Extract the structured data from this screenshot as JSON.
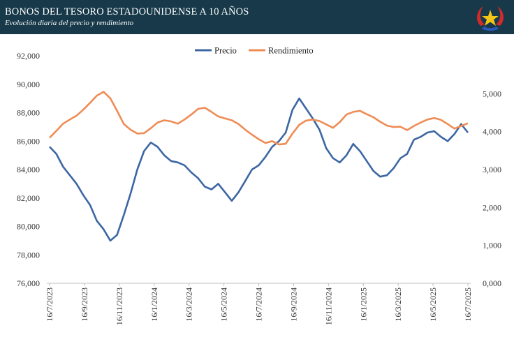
{
  "header": {
    "title": "BONOS DEL TESORO ESTADOUNIDENSE A 10 AÑOS",
    "subtitle": "Evolución diaria del precio y rendimiento"
  },
  "colors": {
    "header_bg": "#17394a",
    "precio": "#3c67a3",
    "rendimiento": "#ef8c55",
    "axis": "#bfbfbf"
  },
  "icons": {
    "logo": "star-emblem-icon"
  },
  "chart_data": {
    "type": "line",
    "legend_position": "top-center",
    "grid": false,
    "x_ticks": [
      "16/7/2023",
      "16/9/2023",
      "16/11/2023",
      "16/1/2024",
      "16/3/2024",
      "16/5/2024",
      "16/7/2024",
      "16/9/2024",
      "16/11/2024",
      "16/1/2025",
      "16/3/2025",
      "16/5/2025",
      "16/7/2025"
    ],
    "y_left": {
      "range": [
        76000,
        92000
      ],
      "ticks": [
        "76,000",
        "78,000",
        "80,000",
        "82,000",
        "84,000",
        "86,000",
        "88,000",
        "90,000",
        "92,000"
      ]
    },
    "y_right": {
      "range": [
        0,
        6000
      ],
      "ticks": [
        "0,000",
        "1,000",
        "2,000",
        "3,000",
        "4,000",
        "5,000"
      ]
    },
    "series": [
      {
        "name": "Precio",
        "axis": "left",
        "values": [
          85.6,
          85.1,
          84.2,
          83.6,
          83.0,
          82.2,
          81.5,
          80.4,
          79.8,
          79.0,
          79.4,
          80.8,
          82.3,
          84.0,
          85.3,
          85.9,
          85.6,
          85.0,
          84.6,
          84.5,
          84.3,
          83.8,
          83.4,
          82.8,
          82.6,
          83.0,
          82.4,
          81.8,
          82.4,
          83.2,
          84.0,
          84.3,
          84.9,
          85.6,
          86.0,
          86.6,
          88.2,
          89.0,
          88.3,
          87.6,
          86.8,
          85.5,
          84.8,
          84.5,
          85.0,
          85.8,
          85.3,
          84.6,
          83.9,
          83.5,
          83.6,
          84.1,
          84.8,
          85.1,
          86.1,
          86.3,
          86.6,
          86.7,
          86.3,
          86.0,
          86.5,
          87.2,
          86.6
        ]
      },
      {
        "name": "Rendimiento",
        "axis": "right",
        "values": [
          3.84,
          4.02,
          4.21,
          4.32,
          4.42,
          4.58,
          4.76,
          4.95,
          5.05,
          4.88,
          4.55,
          4.2,
          4.05,
          3.95,
          3.96,
          4.09,
          4.24,
          4.3,
          4.27,
          4.21,
          4.32,
          4.45,
          4.6,
          4.63,
          4.52,
          4.4,
          4.35,
          4.3,
          4.2,
          4.05,
          3.92,
          3.8,
          3.7,
          3.75,
          3.66,
          3.68,
          3.95,
          4.18,
          4.29,
          4.32,
          4.28,
          4.19,
          4.1,
          4.25,
          4.45,
          4.52,
          4.55,
          4.46,
          4.38,
          4.26,
          4.16,
          4.12,
          4.13,
          4.04,
          4.15,
          4.24,
          4.32,
          4.36,
          4.31,
          4.2,
          4.08,
          4.15,
          4.22
        ]
      }
    ]
  }
}
